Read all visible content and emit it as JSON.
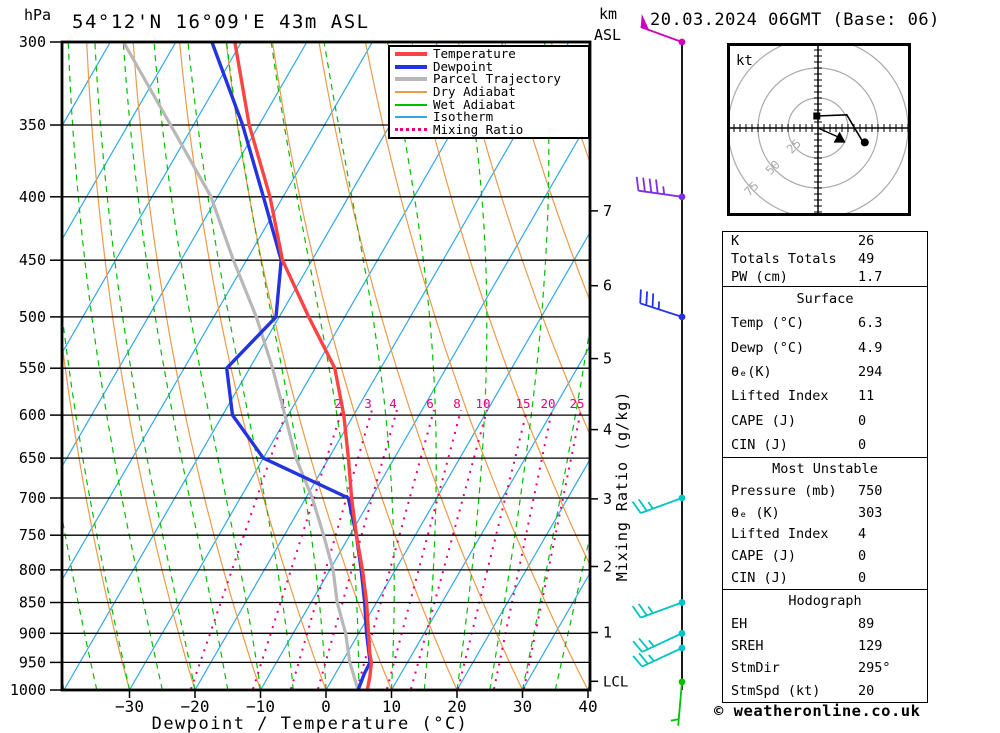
{
  "header": {
    "pressure_unit": "hPa",
    "title": "54°12'N 16°09'E 43m ASL",
    "altitude_unit": "km",
    "altitude_ref": "ASL",
    "datetime": "20.03.2024 06GMT (Base: 06)"
  },
  "footer": {
    "copyright": "© weatheronline.co.uk"
  },
  "legend": {
    "items": [
      {
        "label": "Temperature",
        "style": "thick",
        "color": "#ff4242"
      },
      {
        "label": "Dewpoint",
        "style": "thick",
        "color": "#2433e0"
      },
      {
        "label": "Parcel Trajectory",
        "style": "thick",
        "color": "#b8b8b8"
      },
      {
        "label": "Dry Adiabat",
        "style": "thin",
        "color": "#ec9a4a"
      },
      {
        "label": "Wet Adiabat",
        "style": "thin",
        "color": "#00bf00"
      },
      {
        "label": "Isotherm",
        "style": "thin",
        "color": "#30a8e8"
      },
      {
        "label": "Mixing Ratio",
        "style": "dotted",
        "color": "#e8007e"
      }
    ]
  },
  "axes": {
    "temp_axis_label": "Dewpoint / Temperature (°C)",
    "mixing_ratio_axis_label": "Mixing Ratio (g/kg)",
    "lcl_label": "LCL"
  },
  "chart_data": {
    "type": "skewt_sounding",
    "location": "54°12'N 16°09'E 43m ASL",
    "datetime": "20.03.2024 06GMT (Base: 06)",
    "pressure_axis_hpa": [
      300,
      350,
      400,
      450,
      500,
      550,
      600,
      650,
      700,
      750,
      800,
      850,
      900,
      950,
      1000
    ],
    "temp_axis_c": [
      -30,
      -20,
      -10,
      0,
      10,
      20,
      30,
      40
    ],
    "km_asl_ticks": [
      7,
      6,
      5,
      4,
      3,
      2,
      1
    ],
    "lcl_hpa": 984,
    "mixing_ratio_lines_gkg": [
      1,
      2,
      3,
      4,
      6,
      8,
      10,
      15,
      20,
      25
    ],
    "temperature_profile_p_c": [
      [
        300,
        -71
      ],
      [
        350,
        -61.5
      ],
      [
        400,
        -52
      ],
      [
        450,
        -44.5
      ],
      [
        500,
        -35.5
      ],
      [
        550,
        -27
      ],
      [
        600,
        -21.5
      ],
      [
        650,
        -17
      ],
      [
        700,
        -13
      ],
      [
        750,
        -9
      ],
      [
        800,
        -5
      ],
      [
        850,
        -1.5
      ],
      [
        900,
        1.5
      ],
      [
        935,
        3.5
      ],
      [
        950,
        4.5
      ],
      [
        975,
        5.5
      ],
      [
        1000,
        6.3
      ]
    ],
    "dewpoint_profile_p_c": [
      [
        300,
        -74.5
      ],
      [
        350,
        -62.5
      ],
      [
        400,
        -53
      ],
      [
        450,
        -44.7
      ],
      [
        500,
        -40.5
      ],
      [
        550,
        -43.5
      ],
      [
        600,
        -38.5
      ],
      [
        650,
        -30
      ],
      [
        700,
        -13.5
      ],
      [
        750,
        -9
      ],
      [
        800,
        -5.2
      ],
      [
        850,
        -1.8
      ],
      [
        900,
        1.2
      ],
      [
        950,
        4.3
      ],
      [
        970,
        4.4
      ],
      [
        1000,
        4.9
      ]
    ],
    "parcel_profile_p_c": [
      [
        300,
        -88
      ],
      [
        350,
        -73.5
      ],
      [
        400,
        -61
      ],
      [
        450,
        -52
      ],
      [
        500,
        -43.5
      ],
      [
        550,
        -36.5
      ],
      [
        600,
        -30.5
      ],
      [
        650,
        -25
      ],
      [
        700,
        -19
      ],
      [
        750,
        -14
      ],
      [
        800,
        -9.5
      ],
      [
        850,
        -6
      ],
      [
        900,
        -2
      ],
      [
        950,
        1.2
      ],
      [
        1000,
        4.9
      ]
    ],
    "wind_barbs": [
      {
        "pressure": 300,
        "dir_deg": 290,
        "speed_kt": 50,
        "color": "#cc00bb"
      },
      {
        "pressure": 400,
        "dir_deg": 278,
        "speed_kt": 45,
        "color": "#7b2fe8"
      },
      {
        "pressure": 500,
        "dir_deg": 288,
        "speed_kt": 35,
        "color": "#2433e8"
      },
      {
        "pressure": 700,
        "dir_deg": 250,
        "speed_kt": 25,
        "color": "#00c3c3"
      },
      {
        "pressure": 850,
        "dir_deg": 250,
        "speed_kt": 25,
        "color": "#00c3c3"
      },
      {
        "pressure": 900,
        "dir_deg": 245,
        "speed_kt": 25,
        "color": "#00c3c3"
      },
      {
        "pressure": 925,
        "dir_deg": 245,
        "speed_kt": 25,
        "color": "#00c3c3"
      },
      {
        "pressure": 985,
        "dir_deg": 185,
        "speed_kt": 5,
        "color": "#00c000"
      }
    ],
    "hodograph": {
      "unit": "kt",
      "ring_radii_kt": [
        25,
        50,
        75
      ],
      "trace_kt": [
        [
          -1,
          10
        ],
        [
          24,
          11
        ],
        [
          37,
          -11
        ],
        [
          39,
          -12
        ]
      ],
      "storm_motion_kt": [
        18,
        -8
      ],
      "storm_dir_deg": 295,
      "storm_speed_kt": 20
    }
  },
  "tables": [
    {
      "rows": [
        [
          "K",
          "26"
        ],
        [
          "Totals Totals",
          "49"
        ],
        [
          "PW (cm)",
          "1.7"
        ]
      ]
    },
    {
      "header": "Surface",
      "rows": [
        [
          "Temp (°C)",
          "6.3"
        ],
        [
          "Dewp (°C)",
          "4.9"
        ],
        [
          "θₑ(K)",
          "294"
        ],
        [
          "Lifted Index",
          "11"
        ],
        [
          "CAPE (J)",
          "0"
        ],
        [
          "CIN (J)",
          "0"
        ]
      ]
    },
    {
      "header": "Most Unstable",
      "rows": [
        [
          "Pressure (mb)",
          "750"
        ],
        [
          "θₑ (K)",
          "303"
        ],
        [
          "Lifted Index",
          "4"
        ],
        [
          "CAPE (J)",
          "0"
        ],
        [
          "CIN (J)",
          "0"
        ]
      ]
    },
    {
      "header": "Hodograph",
      "rows": [
        [
          "EH",
          "89"
        ],
        [
          "SREH",
          "129"
        ],
        [
          "StmDir",
          "295°"
        ],
        [
          "StmSpd (kt)",
          "20"
        ]
      ]
    }
  ],
  "colors": {
    "temperature": "#ff4242",
    "dewpoint": "#2433e0",
    "parcel": "#b8b8b8",
    "dry_adiabat": "#ec9a4a",
    "wet_adiabat": "#00bf00",
    "isotherm": "#30a8e8",
    "mixing_ratio": "#e8007e",
    "grid": "#000000",
    "hodo_ring": "#aaaaaa"
  }
}
